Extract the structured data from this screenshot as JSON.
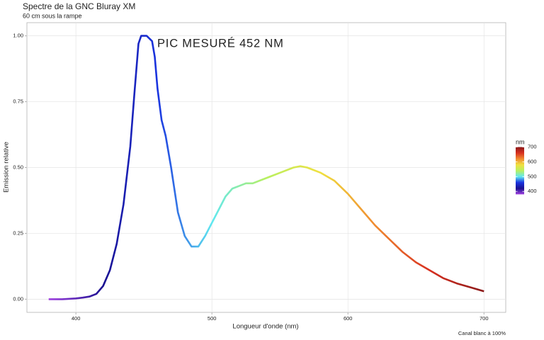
{
  "chart_data": {
    "type": "line",
    "title": "Spectre de la GNC Bluray XM",
    "subtitle": "60 cm sous la rampe",
    "x_label": "Longueur d'onde (nm)",
    "y_label": "Emission relative",
    "caption": "Canal blanc à 100%",
    "annotation": "PIC MESURÉ  452 NM",
    "x": [
      380,
      390,
      400,
      405,
      410,
      415,
      420,
      425,
      430,
      435,
      440,
      443,
      446,
      448,
      452,
      456,
      458,
      460,
      463,
      466,
      470,
      475,
      480,
      485,
      490,
      495,
      500,
      505,
      510,
      515,
      520,
      525,
      530,
      540,
      550,
      560,
      565,
      570,
      580,
      590,
      600,
      610,
      620,
      630,
      640,
      650,
      660,
      670,
      680,
      690,
      700
    ],
    "values": [
      0.0,
      0.0,
      0.003,
      0.006,
      0.01,
      0.02,
      0.05,
      0.11,
      0.21,
      0.36,
      0.58,
      0.78,
      0.97,
      1.0,
      1.0,
      0.98,
      0.92,
      0.8,
      0.68,
      0.62,
      0.5,
      0.33,
      0.24,
      0.2,
      0.2,
      0.24,
      0.29,
      0.34,
      0.39,
      0.42,
      0.43,
      0.44,
      0.44,
      0.46,
      0.48,
      0.5,
      0.505,
      0.5,
      0.48,
      0.45,
      0.4,
      0.34,
      0.28,
      0.23,
      0.18,
      0.14,
      0.11,
      0.08,
      0.06,
      0.045,
      0.03
    ],
    "xlim": [
      364,
      716
    ],
    "xticks": [
      400,
      500,
      600,
      700
    ],
    "ylim": [
      -0.05,
      1.05
    ],
    "yticks": [
      {
        "value": 0,
        "label": "0.00"
      },
      {
        "value": 0.25,
        "label": "0.25"
      },
      {
        "value": 0.5,
        "label": "0.50"
      },
      {
        "value": 0.75,
        "label": "0.75"
      },
      {
        "value": 1,
        "label": "1.00"
      }
    ],
    "grid": true,
    "colorscale": {
      "title": "nm",
      "lim": [
        380,
        700
      ],
      "ticks": [
        400,
        500,
        600,
        700
      ],
      "colors": [
        "#a040e0",
        "#1a1090",
        "#1a34e0",
        "#60e8f0",
        "#b8f060",
        "#f0e040",
        "#f08a30",
        "#d83020",
        "#8b1a1a"
      ]
    }
  }
}
